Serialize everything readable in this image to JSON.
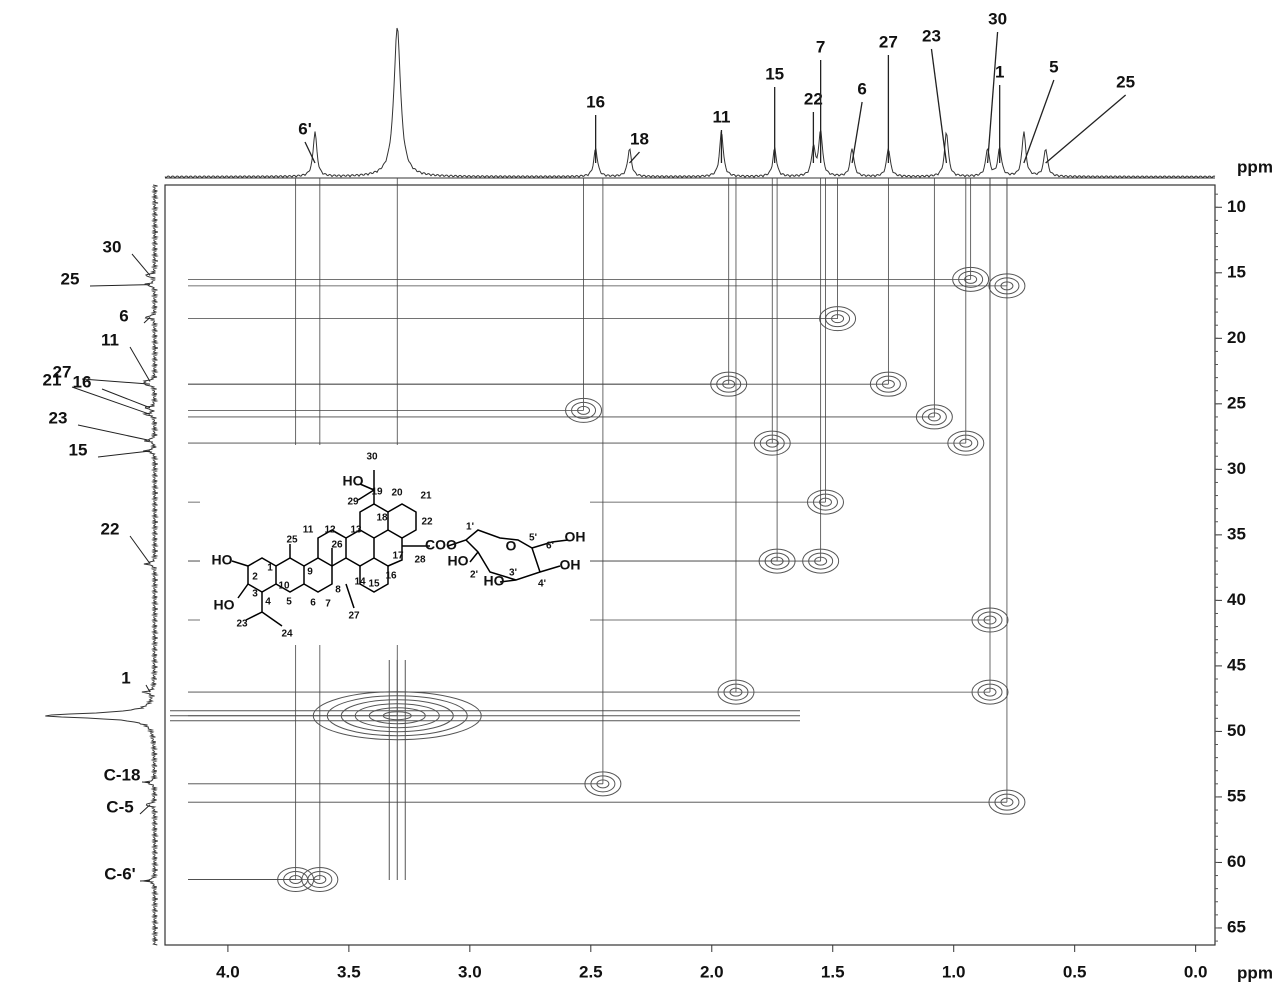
{
  "chart_data": {
    "type": "contour",
    "x_label": "ppm",
    "y_label": "ppm",
    "xlim": [
      4.26,
      -0.08
    ],
    "ylim": [
      8.3,
      66.3
    ],
    "xticks": [
      {
        "value": 4,
        "label": "4.0"
      },
      3.5,
      {
        "value": 3,
        "label": "3.0"
      },
      2.5,
      {
        "value": 2,
        "label": "2.0"
      },
      1.5,
      {
        "value": 1,
        "label": "1.0"
      },
      0.5,
      {
        "value": 0,
        "label": "0.0"
      }
    ],
    "yticks": [
      10,
      15,
      20,
      25,
      30,
      35,
      40,
      45,
      50,
      55,
      60,
      65
    ],
    "color": "#555555",
    "peaks": {
      "x": [
        0.93,
        0.78,
        1.48,
        1.93,
        1.27,
        2.53,
        1.08,
        0.95,
        1.75,
        1.53,
        1.73,
        1.55,
        0.85,
        3.3,
        2.45,
        0.78,
        3.72,
        3.62,
        0.85,
        1.9
      ],
      "y": [
        15.5,
        16,
        18.5,
        23.5,
        23.5,
        25.5,
        26,
        28,
        28,
        32.5,
        37,
        37,
        47,
        48.8,
        54,
        55.4,
        61.3,
        61.3,
        41.5,
        47
      ]
    },
    "top_labels": [
      {
        "label": "6'",
        "x": 3.64
      },
      {
        "label": "16",
        "x": 2.48
      },
      {
        "label": "18",
        "x": 2.34
      },
      {
        "label": "11",
        "x": 1.96
      },
      {
        "label": "15",
        "x": 1.74
      },
      {
        "label": "22",
        "x": 1.58
      },
      {
        "label": "7",
        "x": 1.55
      },
      {
        "label": "6",
        "x": 1.42
      },
      {
        "label": "27",
        "x": 1.27
      },
      {
        "label": "23",
        "x": 1.03
      },
      {
        "label": "30",
        "x": 0.86
      },
      {
        "label": "1",
        "x": 0.81
      },
      {
        "label": "5",
        "x": 0.71
      },
      {
        "label": "25",
        "x": 0.62
      }
    ],
    "left_labels": [
      {
        "label": "30",
        "y": 15.2
      },
      {
        "label": "25",
        "y": 15.9
      },
      {
        "label": "6",
        "y": 18.4
      },
      {
        "label": "27",
        "y": 23.5
      },
      {
        "label": "11",
        "y": 23.3
      },
      {
        "label": "21",
        "y": 25.8
      },
      {
        "label": "16",
        "y": 25.3
      },
      {
        "label": "23",
        "y": 27.8
      },
      {
        "label": "15",
        "y": 28.6
      },
      {
        "label": "22",
        "y": 37.2
      },
      {
        "label": "1",
        "y": 47
      },
      {
        "label": "C-18",
        "y": 53.9
      },
      {
        "label": "C-5",
        "y": 55.6
      },
      {
        "label": "C-6'",
        "y": 61.4
      }
    ],
    "structure_labels": [
      "30",
      "HO",
      "19",
      "20",
      "21",
      "29",
      "18",
      "12",
      "13",
      "22",
      "17",
      "25",
      "11",
      "26",
      "9",
      "1",
      "HO",
      "2",
      "10",
      "14",
      "8",
      "15",
      "16",
      "7",
      "27",
      "HO",
      "3",
      "4",
      "5",
      "6",
      "23",
      "24",
      "COO",
      "28",
      "1'",
      "O",
      "2'",
      "HO",
      "3'",
      "HO",
      "4'",
      "5'",
      "6'",
      "OH",
      "OH"
    ]
  }
}
